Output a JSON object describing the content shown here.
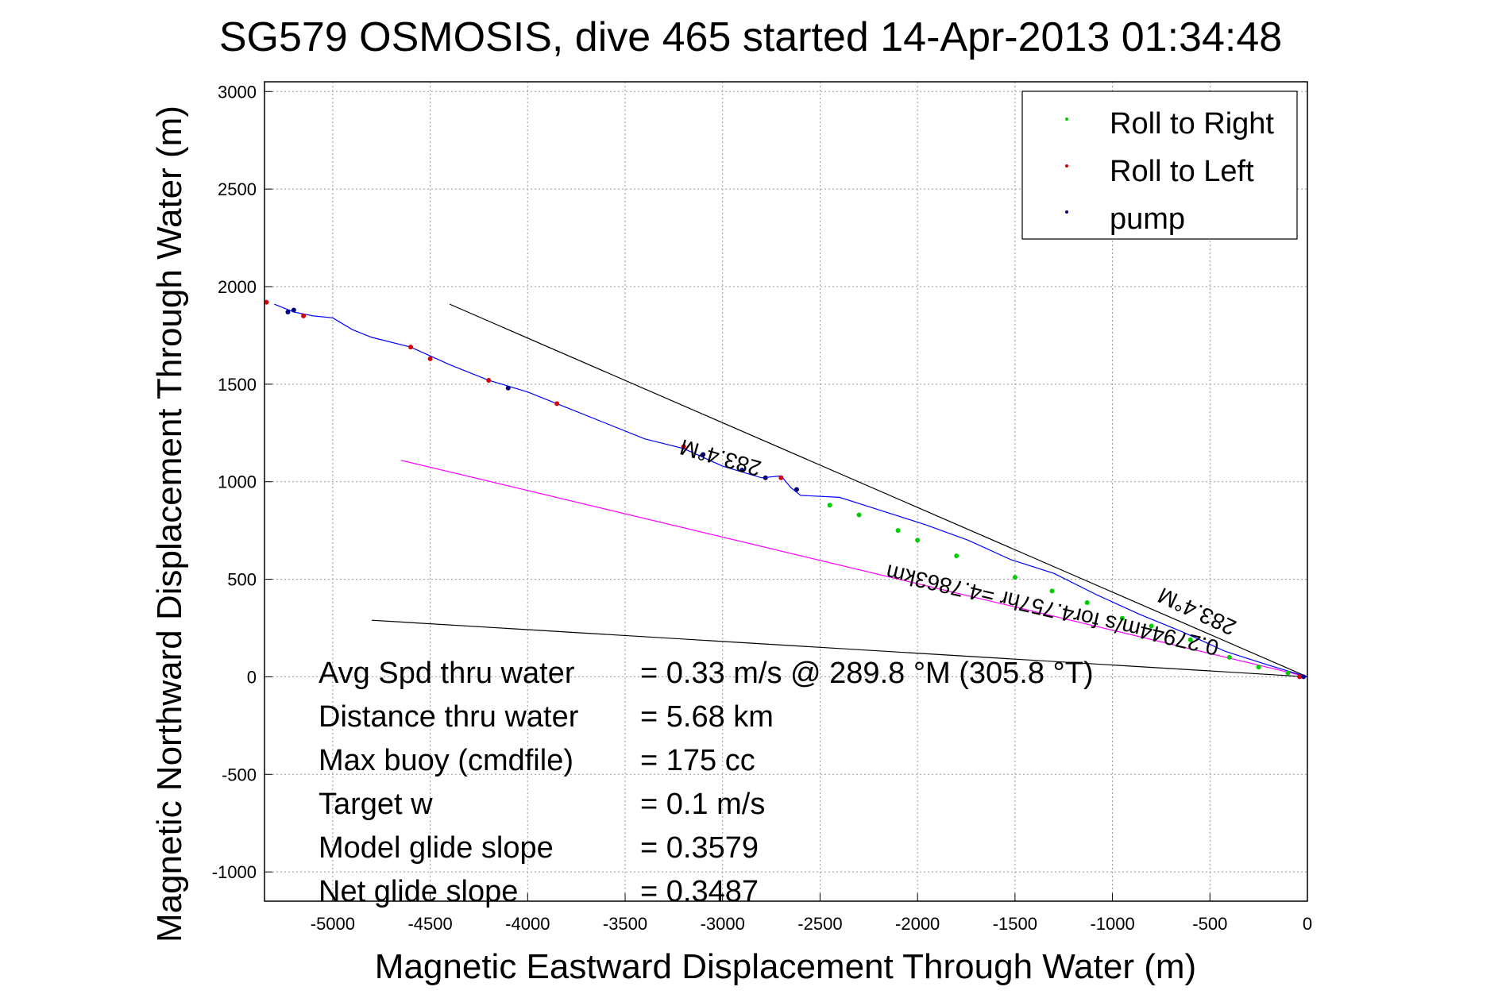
{
  "chart_data": {
    "type": "scatter",
    "title": "SG579 OSMOSIS, dive 465 started 14-Apr-2013 01:34:48",
    "xlabel": "Magnetic Eastward Displacement Through Water (m)",
    "ylabel": "Magnetic Northward Displacement Through Water (m)",
    "xlim": [
      -5350,
      0
    ],
    "ylim": [
      -1150,
      3050
    ],
    "grid": true,
    "x_ticks": [
      -5000,
      -4500,
      -4000,
      -3500,
      -3000,
      -2500,
      -2000,
      -1500,
      -1000,
      -500,
      0
    ],
    "y_ticks": [
      3000,
      2500,
      2000,
      1500,
      1000,
      500,
      0,
      -500,
      -1000
    ],
    "legend_position": "top-right",
    "legend": [
      {
        "label": "Roll to Right",
        "color": "#00cc00"
      },
      {
        "label": "Roll to Left",
        "color": "#dd0000"
      },
      {
        "label": "pump",
        "color": "#000080"
      }
    ],
    "track": {
      "color": "#0000ff",
      "x": [
        0,
        -200,
        -420,
        -640,
        -860,
        -1080,
        -1300,
        -1520,
        -1740,
        -1960,
        -2180,
        -2400,
        -2600,
        -2650,
        -2700,
        -2800,
        -2900,
        -3000,
        -3200,
        -3400,
        -3600,
        -3800,
        -4000,
        -4200,
        -4400,
        -4600,
        -4800,
        -4900,
        -5000,
        -5100,
        -5200,
        -5300
      ],
      "y": [
        0,
        60,
        130,
        230,
        320,
        420,
        530,
        600,
        700,
        780,
        850,
        920,
        930,
        970,
        1030,
        1020,
        1050,
        1080,
        1170,
        1220,
        1300,
        1380,
        1460,
        1520,
        1600,
        1690,
        1740,
        1780,
        1840,
        1850,
        1870,
        1910
      ]
    },
    "roll_right": {
      "x": [
        -100,
        -250,
        -400,
        -600,
        -800,
        -950,
        -1130,
        -1310,
        -1500,
        -1800,
        -2000,
        -2100,
        -2300,
        -2450
      ],
      "y": [
        20,
        50,
        100,
        190,
        260,
        300,
        380,
        440,
        510,
        620,
        700,
        750,
        830,
        880
      ]
    },
    "roll_left": {
      "x": [
        -40,
        -2700,
        -3200,
        -3850,
        -4200,
        -4500,
        -4600,
        -5150,
        -5340
      ],
      "y": [
        0,
        1020,
        1180,
        1400,
        1520,
        1630,
        1690,
        1850,
        1920
      ]
    },
    "pump": {
      "x": [
        -20,
        -2620,
        -2780,
        -2900,
        -3100,
        -4100,
        -5200,
        -5230
      ],
      "y": [
        0,
        960,
        1020,
        1060,
        1140,
        1480,
        1880,
        1870
      ]
    },
    "reference_lines": [
      {
        "color": "#000000",
        "x": [
          0,
          -4400
        ],
        "y": [
          0,
          1910
        ]
      },
      {
        "color": "#ff00ff",
        "x": [
          0,
          -4650
        ],
        "y": [
          0,
          1110
        ]
      },
      {
        "color": "#000000",
        "x": [
          0,
          -4800
        ],
        "y": [
          0,
          290
        ]
      }
    ],
    "annotations": [
      {
        "text": "283.4°M",
        "x": -3000,
        "y": 1160,
        "rotate": 196,
        "size": 28
      },
      {
        "text": "283.4°M",
        "x": -550,
        "y": 370,
        "rotate": 205,
        "size": 28
      },
      {
        "text": "0.27944m/s for4.757hr =4.7863km",
        "x": -1300,
        "y": 380,
        "rotate": 193,
        "size": 28
      }
    ],
    "stats": [
      {
        "label": "Avg Spd thru water",
        "value": "=  0.33 m/s @ 289.8 °M (305.8 °T)"
      },
      {
        "label": "Distance thru water",
        "value": "=  5.68 km"
      },
      {
        "label": "Max buoy (cmdfile)",
        "value": "= 175 cc"
      },
      {
        "label": "Target w",
        "value": "= 0.1 m/s"
      },
      {
        "label": "Model glide slope",
        "value": "= 0.3579"
      },
      {
        "label": "Net glide slope",
        "value": "= 0.3487"
      }
    ]
  }
}
